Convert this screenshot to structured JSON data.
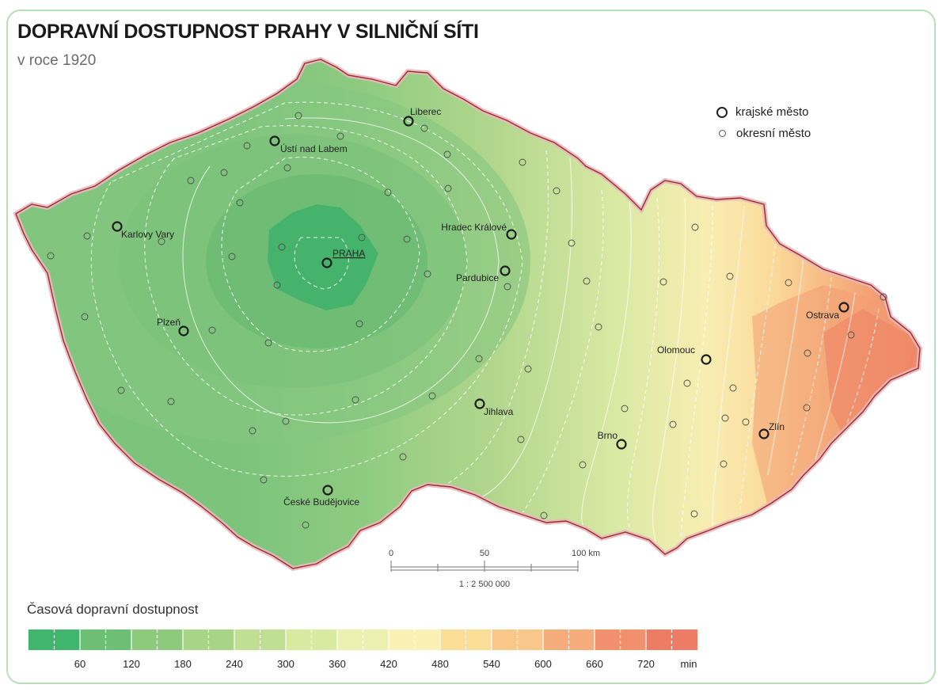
{
  "title": "DOPRAVNÍ DOSTUPNOST PRAHY V SILNIČNÍ SÍTI",
  "subtitle": "v roce 1920",
  "legend_title": "Časová dopravní dostupnost",
  "symbol_legend": {
    "regional": "krajské město",
    "district": "okresní město"
  },
  "scale": {
    "labels": [
      "0",
      "50",
      "100 km"
    ],
    "ratio": "1 : 2 500 000"
  },
  "color_scale": {
    "unit": "min",
    "tick_labels": [
      "60",
      "120",
      "180",
      "240",
      "300",
      "360",
      "420",
      "480",
      "540",
      "600",
      "660",
      "720"
    ],
    "colors": [
      "#3fb56e",
      "#6cbf74",
      "#8ccb7c",
      "#a8d488",
      "#c0df92",
      "#d8eaa0",
      "#ecf0ae",
      "#fbf0b4",
      "#fbdd98",
      "#f9c78a",
      "#f6ab7c",
      "#f2906e",
      "#ee7b64"
    ]
  },
  "cities": {
    "regional": [
      {
        "name": "PRAHA",
        "capital": true
      },
      {
        "name": "Liberec"
      },
      {
        "name": "Ústí nad Labem"
      },
      {
        "name": "Karlovy Vary"
      },
      {
        "name": "Hradec Králové"
      },
      {
        "name": "Pardubice"
      },
      {
        "name": "Plzeň"
      },
      {
        "name": "Jihlava"
      },
      {
        "name": "České Budějovice"
      },
      {
        "name": "Brno"
      },
      {
        "name": "Olomouc"
      },
      {
        "name": "Ostrava"
      },
      {
        "name": "Zlín"
      }
    ]
  }
}
